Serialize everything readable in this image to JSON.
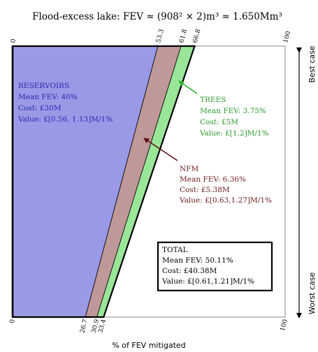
{
  "title": "Flood-excess lake: FEV ≈ (908² × 2)m³ ≈ 1.650Mm³",
  "axis": {
    "xlabel": "% of FEV mitigated",
    "top_ticks": [
      "0",
      "53.3",
      "61.8",
      "66.8",
      "100"
    ],
    "top_values": [
      0,
      53.3,
      61.8,
      66.8,
      100
    ],
    "bottom_ticks": [
      "0",
      "26.7",
      "30.9",
      "33.4",
      "100"
    ],
    "bottom_values": [
      0,
      26.7,
      30.9,
      33.4,
      100
    ],
    "best_case": "Best case",
    "worst_case": "Worst case"
  },
  "colors": {
    "reservoirs": "#9999e6",
    "nfm": "#bf9999",
    "trees": "#99e699",
    "reservoirs_text": "#2a2ab0",
    "nfm_text": "#6b1a1a",
    "trees_text": "#2a9a2a"
  },
  "reservoirs": {
    "name": "RESERVOIRS",
    "mean": "Mean FEV: 40%",
    "cost": "Cost: £30M",
    "value": "Value: £[0.56, 1.13]M/1%"
  },
  "trees": {
    "name": "TREES",
    "mean": "Mean FEV: 3.75%",
    "cost": "Cost: £5M",
    "value": "Value: £[1,2]M/1%"
  },
  "nfm": {
    "name": "NFM",
    "mean": "Mean FEV: 6.36%",
    "cost": "Cost: £5.38M",
    "value": "Value: £[0.63,1.27]M/1%"
  },
  "total": {
    "name": "TOTAL",
    "mean": "Mean FEV: 50.11%",
    "cost": "Cost: £40.38M",
    "value": "Value: £[0.61,1.21]M/1%"
  }
}
